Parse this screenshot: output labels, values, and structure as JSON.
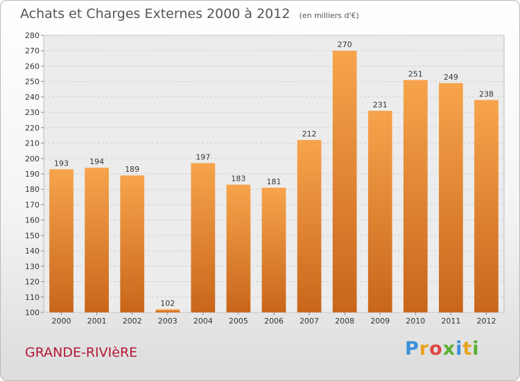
{
  "header": {
    "title": "Achats et Charges Externes 2000 à 2012",
    "subtitle": "(en milliers d'€)"
  },
  "footer": {
    "place": "GRANDE-RIVIèRE",
    "logo_letters": [
      "P",
      "r",
      "o",
      "x",
      "i",
      "t",
      "i"
    ],
    "logo_colors": [
      "#3a8fd9",
      "#e8a31c",
      "#e04646",
      "#57b033",
      "#3a8fd9",
      "#e8a31c",
      "#57b033"
    ]
  },
  "chart_data": {
    "type": "bar",
    "title": "Achats et Charges Externes 2000 à 2012",
    "subtitle": "(en milliers d'€)",
    "categories": [
      "2000",
      "2001",
      "2002",
      "2003",
      "2004",
      "2005",
      "2006",
      "2007",
      "2008",
      "2009",
      "2010",
      "2011",
      "2012"
    ],
    "values": [
      193,
      194,
      189,
      102,
      197,
      183,
      181,
      212,
      270,
      231,
      251,
      249,
      238
    ],
    "data_labels": [
      "193",
      "194",
      "189",
      "102",
      "197",
      "183",
      "181",
      "212",
      "270",
      "231",
      "251",
      "249",
      "238"
    ],
    "y_ticks": [
      "100",
      "110",
      "120",
      "130",
      "140",
      "150",
      "160",
      "170",
      "180",
      "190",
      "200",
      "210",
      "220",
      "230",
      "240",
      "250",
      "260",
      "270",
      "280"
    ],
    "ylim": [
      100,
      280
    ],
    "grid": true,
    "bar_color_top": "#f7a44c",
    "bar_color_bottom": "#c8661b",
    "xlabel": "",
    "ylabel": ""
  }
}
